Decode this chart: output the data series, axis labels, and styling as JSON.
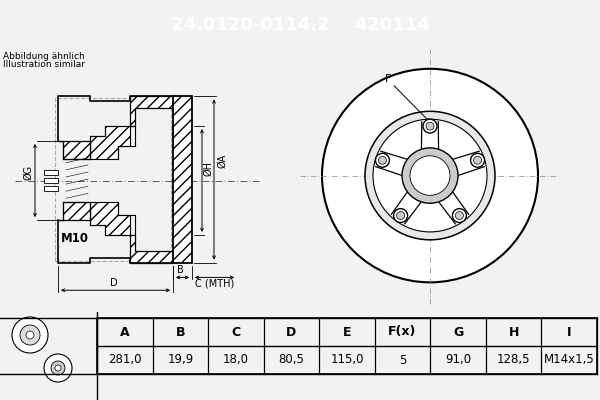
{
  "title_part_number": "24.0120-0114.2",
  "title_ref_number": "420114",
  "title_bg_color": "#0000cc",
  "title_text_color": "#ffffff",
  "subtitle_line1": "Abbildung ähnlich",
  "subtitle_line2": "Illustration similar",
  "table_headers": [
    "A",
    "B",
    "C",
    "D",
    "E",
    "F(x)",
    "G",
    "H",
    "I"
  ],
  "table_values": [
    "281,0",
    "19,9",
    "18,0",
    "80,5",
    "115,0",
    "5",
    "91,0",
    "128,5",
    "M14x1,5"
  ],
  "m10_label": "M10",
  "background_color": "#f2f2f2",
  "drawing_bg": "#f2f2f2",
  "line_color": "#000000",
  "title_fontsize": 13,
  "table_header_fontsize": 9,
  "table_value_fontsize": 8.5
}
